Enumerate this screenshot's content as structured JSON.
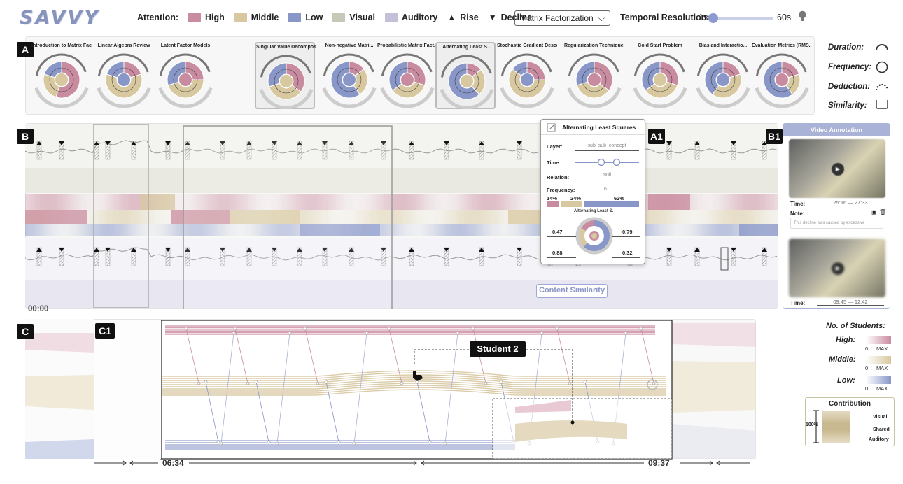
{
  "app": {
    "logo": "SAVVY"
  },
  "toolbar": {
    "attention_label": "Attention:",
    "levels": [
      {
        "label": "High",
        "color": "#c98b9f"
      },
      {
        "label": "Middle",
        "color": "#d8c8a0"
      },
      {
        "label": "Low",
        "color": "#8896c8"
      },
      {
        "label": "Visual",
        "color": "#c8c8b8"
      },
      {
        "label": "Auditory",
        "color": "#c4c0d8"
      }
    ],
    "rise_label": "Rise",
    "decline_label": "Decline",
    "method_select": "Matrix Factorization",
    "temporal_label": "Temporal Resolution:",
    "temporal_min": "1s",
    "temporal_max": "60s",
    "temporal_value": 0.02,
    "lightbulb_icon": "lightbulb-icon"
  },
  "panels": {
    "a": "A",
    "b": "B",
    "c": "C",
    "a1": "A1",
    "b1": "B1",
    "c1": "C1"
  },
  "concepts": [
    {
      "title": "Introduction to Matrix Factor...",
      "h": 0.55,
      "m": 0.25,
      "l": 0.2
    },
    {
      "title": "Linear Algebra Review",
      "h": 0.2,
      "m": 0.6,
      "l": 0.2
    },
    {
      "title": "Latent Factor Models",
      "h": 0.25,
      "m": 0.45,
      "l": 0.3
    },
    {
      "title": "Singular Value Decomposit...",
      "h": 0.35,
      "m": 0.35,
      "l": 0.3
    },
    {
      "title": "Non-negative Matri...",
      "h": 0.15,
      "m": 0.25,
      "l": 0.6
    },
    {
      "title": "Probabilistic Matrix Fact...",
      "h": 0.3,
      "m": 0.35,
      "l": 0.35
    },
    {
      "title": "Alternating Least S...",
      "h": 0.14,
      "m": 0.24,
      "l": 0.62
    },
    {
      "title": "Stochastic Gradient Descent (...",
      "h": 0.25,
      "m": 0.6,
      "l": 0.15
    },
    {
      "title": "Regularization Techniques",
      "h": 0.35,
      "m": 0.35,
      "l": 0.3
    },
    {
      "title": "Cold Start Problem",
      "h": 0.3,
      "m": 0.35,
      "l": 0.35
    },
    {
      "title": "Bias and Interactio...",
      "h": 0.2,
      "m": 0.4,
      "l": 0.4
    },
    {
      "title": "Evaluation Metrics (RMS...",
      "h": 0.2,
      "m": 0.2,
      "l": 0.6
    }
  ],
  "legend": {
    "duration": "Duration:",
    "frequency": "Frequency:",
    "deduction": "Deduction:",
    "similarity": "Similarity:"
  },
  "timeline": {
    "start": "00:00",
    "content_similarity": "Content Similarity"
  },
  "a1": {
    "title": "Alternating Least Squares",
    "layer_label": "Layer:",
    "layer_value": "sub_sub_concept",
    "time_label": "Time:",
    "relation_label": "Relation:",
    "relation_value": "Null",
    "frequency_label": "Frequency:",
    "frequency_value": "6",
    "pct": [
      "14%",
      "24%",
      "62%"
    ],
    "pct_values": [
      0.14,
      0.24,
      0.62
    ],
    "chart_title": "Alternating Least S.",
    "corners": [
      "0.47",
      "0.79",
      "0.88",
      "0.32"
    ]
  },
  "b1": {
    "title": "Video Annotation",
    "time_label": "Time:",
    "note_label": "Note:",
    "clip1_time": "25:16 — 27:33",
    "clip1_note": "This decline was caused by excessive",
    "clip2_time": "09:45 — 12:42"
  },
  "c": {
    "student_label": "Student 2",
    "start_time": "06:34",
    "end_time": "09:37",
    "students_title": "No. of Students:",
    "high": "High:",
    "middle": "Middle:",
    "low": "Low:",
    "zero": "0",
    "max": "MAX",
    "contribution": "Contribution",
    "visual": "Visual",
    "shared": "Shared",
    "auditory": "Auditory",
    "percent": "100%"
  }
}
